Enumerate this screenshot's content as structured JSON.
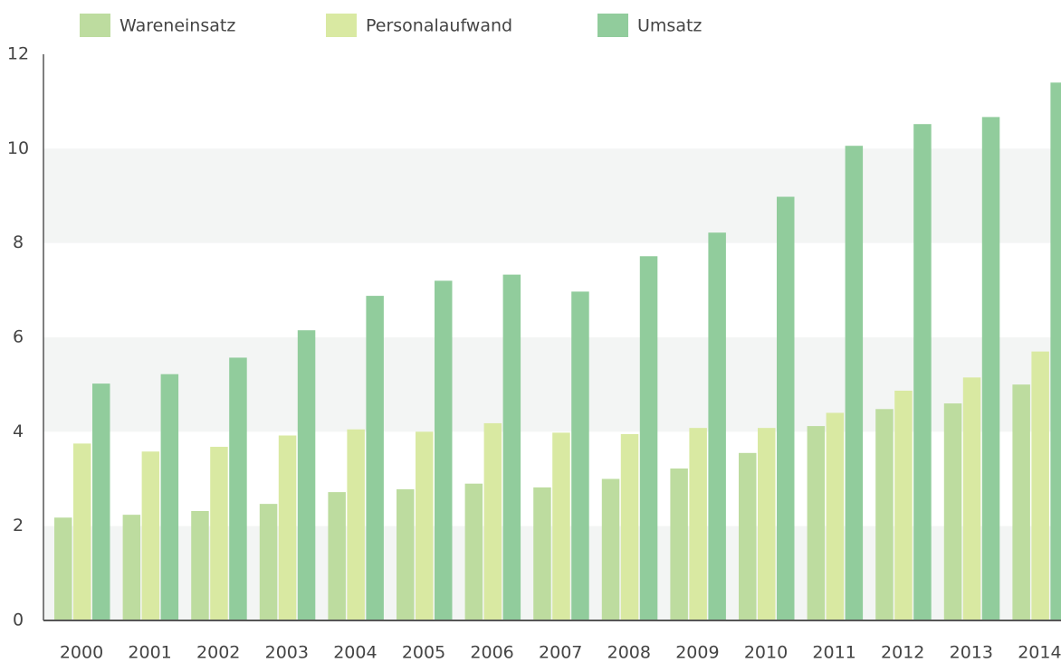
{
  "chart_data": {
    "type": "bar",
    "categories": [
      "2000",
      "2001",
      "2002",
      "2003",
      "2004",
      "2005",
      "2006",
      "2007",
      "2008",
      "2009",
      "2010",
      "2011",
      "2012",
      "2013",
      "2014"
    ],
    "series": [
      {
        "name": "Wareneinsatz",
        "color": "#bddc9f",
        "values": [
          2.18,
          2.24,
          2.32,
          2.47,
          2.72,
          2.78,
          2.9,
          2.82,
          3.0,
          3.22,
          3.55,
          4.12,
          4.48,
          4.6,
          5.0
        ]
      },
      {
        "name": "Personalaufwand",
        "color": "#d9e9a2",
        "values": [
          3.75,
          3.58,
          3.68,
          3.92,
          4.05,
          4.0,
          4.18,
          3.98,
          3.95,
          4.08,
          4.08,
          4.4,
          4.87,
          5.15,
          5.7
        ]
      },
      {
        "name": "Umsatz",
        "color": "#91cc9c",
        "values": [
          5.02,
          5.22,
          5.57,
          6.15,
          6.88,
          7.2,
          7.33,
          6.97,
          7.72,
          8.22,
          8.98,
          10.06,
          10.52,
          10.67,
          11.4
        ]
      }
    ],
    "ylim": [
      0,
      12
    ],
    "yticks": [
      0,
      2,
      4,
      6,
      8,
      10,
      12
    ],
    "alternate_bands": true,
    "legend": "top"
  }
}
